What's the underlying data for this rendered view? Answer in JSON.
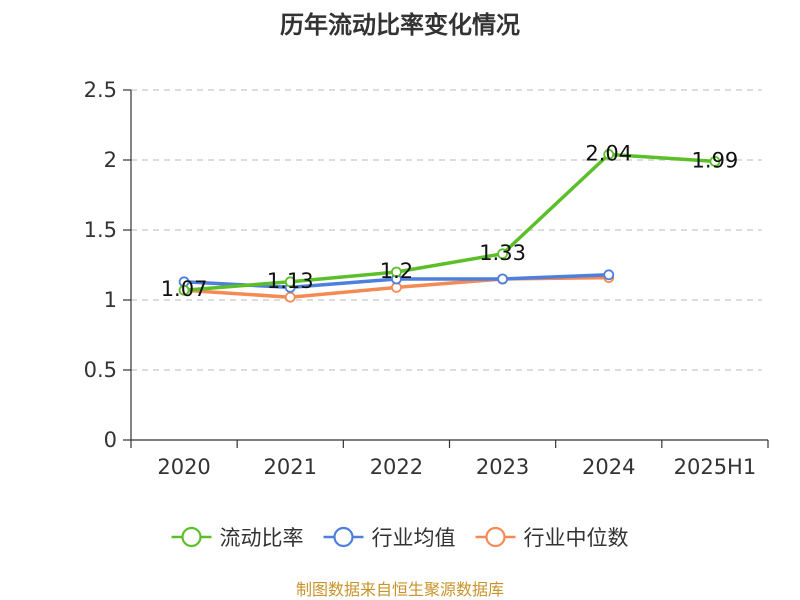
{
  "chart_data": {
    "type": "line",
    "title": "历年流动比率变化情况",
    "categories": [
      "2020",
      "2021",
      "2022",
      "2023",
      "2024",
      "2025H1"
    ],
    "ylim": [
      0,
      2.5
    ],
    "yticks": [
      "0",
      "0.5",
      "1",
      "1.5",
      "2",
      "2.5"
    ],
    "grid": true,
    "legend_position": "bottom",
    "series": [
      {
        "name": "流动比率",
        "color": "#5cbf2a",
        "values": [
          1.07,
          1.13,
          1.2,
          1.33,
          2.04,
          1.99
        ],
        "labels": [
          "1.07",
          "1.13",
          "1.2",
          "1.33",
          "2.04",
          "1.99"
        ]
      },
      {
        "name": "行业均值",
        "color": "#4e7fdc",
        "values": [
          1.13,
          1.09,
          1.15,
          1.15,
          1.18,
          null
        ]
      },
      {
        "name": "行业中位数",
        "color": "#f58a55",
        "values": [
          1.07,
          1.02,
          1.09,
          1.15,
          1.16,
          null
        ]
      }
    ],
    "source": "制图数据来自恒生聚源数据库",
    "source_color": "#c8932a"
  }
}
